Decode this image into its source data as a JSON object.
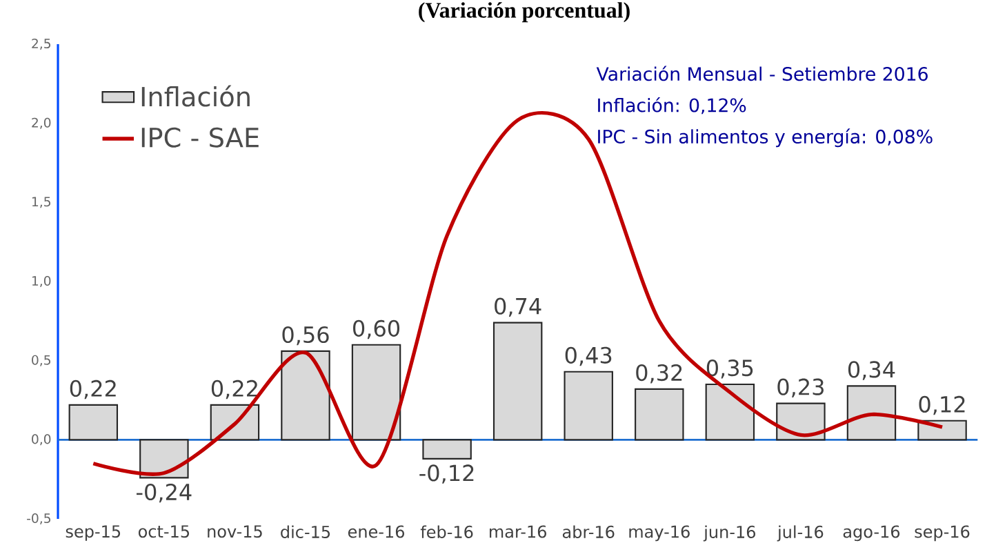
{
  "chart_data": {
    "type": "bar",
    "title": "(Variación porcentual)",
    "categories": [
      "sep-15",
      "oct-15",
      "nov-15",
      "dic-15",
      "ene-16",
      "feb-16",
      "mar-16",
      "abr-16",
      "may-16",
      "jun-16",
      "jul-16",
      "ago-16",
      "sep-16"
    ],
    "series": [
      {
        "name": "Inflación",
        "color": "#d9d9d9",
        "values": [
          0.22,
          -0.24,
          0.22,
          0.56,
          0.6,
          -0.12,
          0.74,
          0.43,
          0.32,
          0.35,
          0.23,
          0.34,
          0.12
        ],
        "value_labels": [
          "0,22",
          "-0,24",
          "0,22",
          "0,56",
          "0,60",
          "-0,12",
          "0,74",
          "0,43",
          "0,32",
          "0,35",
          "0,23",
          "0,34",
          "0,12"
        ]
      },
      {
        "name": "IPC - SAE",
        "type": "line",
        "color": "#c00000",
        "values": [
          -0.15,
          -0.21,
          0.1,
          0.55,
          -0.16,
          1.29,
          2.02,
          1.9,
          0.75,
          0.3,
          0.03,
          0.16,
          0.08
        ]
      }
    ],
    "ylim": [
      -0.5,
      2.5
    ],
    "yticks": [
      {
        "value": -0.5,
        "label": "-0,5"
      },
      {
        "value": 0,
        "label": "0,0"
      },
      {
        "value": 0.5,
        "label": "0,5"
      },
      {
        "value": 1,
        "label": "1,0"
      },
      {
        "value": 1.5,
        "label": "1,5"
      },
      {
        "value": 2,
        "label": "2,0"
      },
      {
        "value": 2.5,
        "label": "2,5"
      }
    ],
    "annotations": [
      "Variación Mensual - Setiembre 2016",
      "Inflación: 0,12%",
      "IPC - Sin alimentos y energía: 0,08%"
    ],
    "ref_lines": [
      {
        "axis": "y",
        "value": 0,
        "color": "#1f6fd0"
      }
    ],
    "legend": "top left",
    "grid": false,
    "marker": "none",
    "line_style": "solid"
  }
}
